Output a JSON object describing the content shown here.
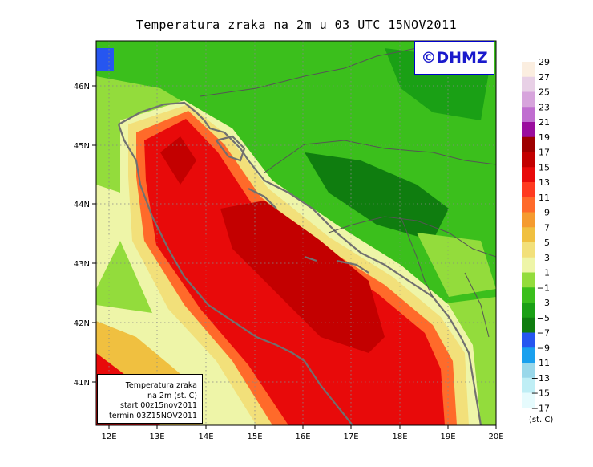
{
  "title": "Temperatura zraka na 2m u 03 UTC 15NOV2011",
  "logo_text": "©DHMZ",
  "info_box": {
    "line1": "Temperatura zraka",
    "line2": "na 2m (st. C)",
    "line3": "start 00z15nov2011",
    "line4": "termin 03Z15NOV2011"
  },
  "axes": {
    "lon_ticks": [
      "12E",
      "13E",
      "14E",
      "15E",
      "16E",
      "17E",
      "18E",
      "19E",
      "20E"
    ],
    "lat_ticks": [
      "46N",
      "45N",
      "44N",
      "43N",
      "42N",
      "41N"
    ]
  },
  "legend": {
    "units": "(st. C)",
    "levels": [
      "29",
      "27",
      "25",
      "23",
      "21",
      "19",
      "17",
      "15",
      "13",
      "11",
      "9",
      "7",
      "5",
      "3",
      "1",
      "−1",
      "−3",
      "−5",
      "−7",
      "−9",
      "−11",
      "−13",
      "−15",
      "−17"
    ],
    "colors": [
      "#fbeee0",
      "#e8d0e6",
      "#d7a4dc",
      "#c06ed0",
      "#9a0d9e",
      "#9e0000",
      "#c30000",
      "#e80a0a",
      "#ff3a20",
      "#ff6a2a",
      "#f59b2f",
      "#f0c040",
      "#f2e07a",
      "#eef5a8",
      "#93dc3c",
      "#3bbf1c",
      "#1aa015",
      "#0f7d0f",
      "#2656f0",
      "#1aa0ee",
      "#9ad8ea",
      "#bfeef5",
      "#e6fbfd"
    ]
  },
  "colors": {
    "sea_warm": "#c30000",
    "coast": "#707070"
  }
}
